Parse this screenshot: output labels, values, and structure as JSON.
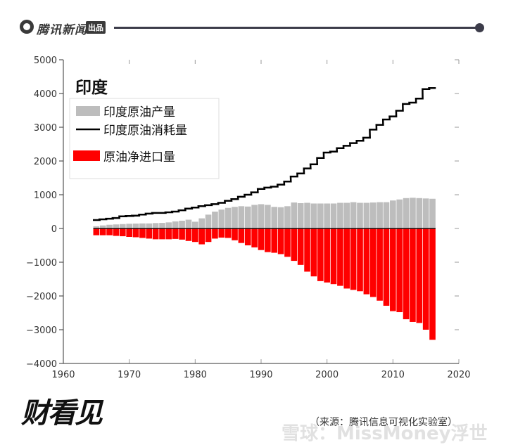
{
  "header": {
    "logo_text": "腾讯新闻",
    "logo_badge": "出品"
  },
  "chart_data": {
    "type": "bar",
    "title": "印度",
    "xlim": [
      1960,
      2020
    ],
    "ylim": [
      -4000,
      5000
    ],
    "x_ticks": [
      1960,
      1970,
      1980,
      1990,
      2000,
      2010,
      2020
    ],
    "y_ticks": [
      5000,
      4000,
      3000,
      2000,
      1000,
      0,
      -1000,
      -2000,
      -3000,
      -4000
    ],
    "legend_position": "top-left",
    "legend": [
      "印度原油产量",
      "印度原油消耗量",
      "原油净进口量"
    ],
    "x": [
      1965,
      1966,
      1967,
      1968,
      1969,
      1970,
      1971,
      1972,
      1973,
      1974,
      1975,
      1976,
      1977,
      1978,
      1979,
      1980,
      1981,
      1982,
      1983,
      1984,
      1985,
      1986,
      1987,
      1988,
      1989,
      1990,
      1991,
      1992,
      1993,
      1994,
      1995,
      1996,
      1997,
      1998,
      1999,
      2000,
      2001,
      2002,
      2003,
      2004,
      2005,
      2006,
      2007,
      2008,
      2009,
      2010,
      2011,
      2012,
      2013,
      2014,
      2015,
      2016
    ],
    "series": [
      {
        "name": "印度原油产量",
        "type": "bar",
        "color": "#bdbdbd",
        "values": [
          65,
          90,
          110,
          120,
          130,
          140,
          145,
          150,
          150,
          160,
          165,
          180,
          210,
          230,
          260,
          200,
          300,
          410,
          500,
          560,
          610,
          640,
          660,
          650,
          700,
          720,
          700,
          640,
          630,
          660,
          770,
          750,
          760,
          740,
          740,
          740,
          740,
          760,
          760,
          780,
          760,
          760,
          770,
          780,
          780,
          830,
          860,
          900,
          910,
          900,
          890,
          880
        ]
      },
      {
        "name": "印度原油消耗量",
        "type": "line",
        "color": "#000000",
        "values": [
          250,
          270,
          290,
          310,
          360,
          370,
          380,
          410,
          440,
          460,
          460,
          480,
          500,
          540,
          590,
          620,
          660,
          690,
          720,
          760,
          820,
          870,
          940,
          1000,
          1070,
          1170,
          1210,
          1240,
          1300,
          1390,
          1540,
          1630,
          1780,
          1900,
          2090,
          2250,
          2280,
          2380,
          2450,
          2530,
          2600,
          2690,
          2930,
          3070,
          3230,
          3320,
          3490,
          3690,
          3730,
          3850,
          4130,
          4160
        ]
      },
      {
        "name": "原油净进口量",
        "type": "bar",
        "color": "#ff0000",
        "values": [
          -200,
          -200,
          -200,
          -220,
          -230,
          -250,
          -260,
          -280,
          -300,
          -320,
          -320,
          -320,
          -310,
          -330,
          -370,
          -400,
          -470,
          -400,
          -300,
          -270,
          -280,
          -350,
          -430,
          -500,
          -560,
          -640,
          -700,
          -720,
          -760,
          -840,
          -960,
          -1080,
          -1280,
          -1420,
          -1560,
          -1600,
          -1650,
          -1700,
          -1780,
          -1820,
          -1860,
          -1950,
          -2030,
          -2140,
          -2290,
          -2450,
          -2480,
          -2690,
          -2770,
          -2800,
          -3000,
          -3300
        ]
      }
    ]
  },
  "footer": {
    "brand": "财看见",
    "source": "（来源：腾讯信息可视化实验室）",
    "watermark": "雪球：MissMoney浮世"
  }
}
